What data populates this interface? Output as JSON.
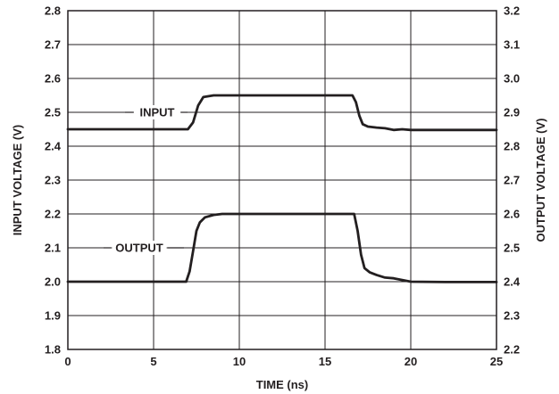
{
  "chart_data": {
    "type": "line",
    "xlabel": "TIME (ns)",
    "ylabel_left": "INPUT VOLTAGE (V)",
    "ylabel_right": "OUTPUT VOLTAGE (V)",
    "xlim": [
      0,
      25
    ],
    "ylim_left": [
      1.8,
      2.8
    ],
    "ylim_right": [
      2.2,
      3.2
    ],
    "x_ticks": [
      0,
      5,
      10,
      15,
      20,
      25
    ],
    "y_ticks_left": [
      1.8,
      1.9,
      2.0,
      2.1,
      2.2,
      2.3,
      2.4,
      2.5,
      2.6,
      2.7,
      2.8
    ],
    "y_ticks_right": [
      2.2,
      2.3,
      2.4,
      2.5,
      2.6,
      2.7,
      2.8,
      2.9,
      3.0,
      3.1,
      3.2
    ],
    "grid": true,
    "line_color": "#231f20",
    "series": [
      {
        "name": "INPUT",
        "axis": "left",
        "x": [
          0,
          6.5,
          7.0,
          7.3,
          7.6,
          7.9,
          8.5,
          10,
          15,
          16.6,
          16.8,
          17.0,
          17.2,
          17.5,
          18,
          18.5,
          19,
          19.5,
          20,
          22,
          25
        ],
        "y": [
          2.45,
          2.45,
          2.45,
          2.47,
          2.52,
          2.545,
          2.55,
          2.55,
          2.55,
          2.55,
          2.53,
          2.49,
          2.465,
          2.458,
          2.455,
          2.453,
          2.448,
          2.45,
          2.448,
          2.448,
          2.448
        ]
      },
      {
        "name": "OUTPUT",
        "axis": "left",
        "x": [
          0,
          6.9,
          7.1,
          7.3,
          7.5,
          7.7,
          8.0,
          8.5,
          9.0,
          10,
          15,
          16.7,
          16.9,
          17.1,
          17.3,
          17.6,
          18.0,
          18.5,
          19.0,
          19.5,
          20.0,
          22,
          25
        ],
        "y": [
          2.0,
          2.0,
          2.03,
          2.09,
          2.15,
          2.175,
          2.19,
          2.197,
          2.2,
          2.2,
          2.2,
          2.2,
          2.15,
          2.08,
          2.04,
          2.028,
          2.02,
          2.012,
          2.01,
          2.005,
          2.0,
          1.999,
          1.999
        ]
      }
    ],
    "annotations": [
      {
        "text": "INPUT",
        "series": "INPUT"
      },
      {
        "text": "OUTPUT",
        "series": "OUTPUT"
      }
    ]
  }
}
